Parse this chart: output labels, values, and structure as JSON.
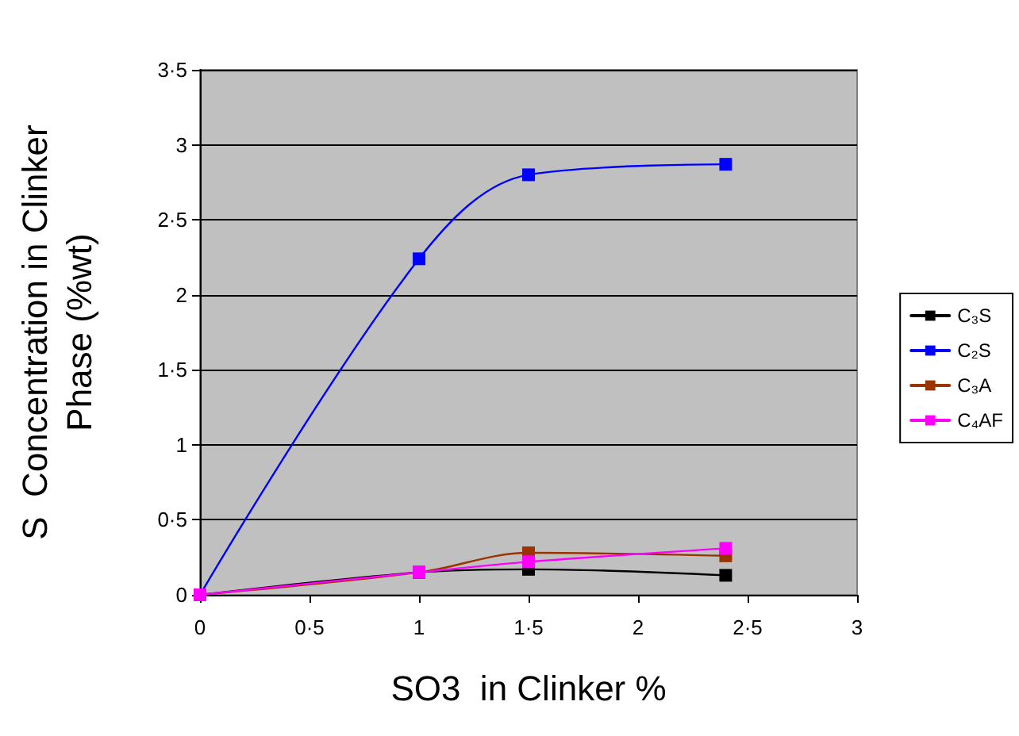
{
  "chart_data": {
    "type": "line",
    "xlabel": "SO3  in Clinker %",
    "ylabel": "S  Concentration in Clinker\nPhase (%wt)",
    "x": [
      0,
      1,
      1.5,
      2.4
    ],
    "series": [
      {
        "name": "C₃S",
        "color": "#000000",
        "values": [
          0,
          0.15,
          0.17,
          0.13
        ]
      },
      {
        "name": "C₂S",
        "color": "#0000ff",
        "values": [
          0,
          2.24,
          2.8,
          2.87
        ]
      },
      {
        "name": "C₃A",
        "color": "#993300",
        "values": [
          0,
          0.15,
          0.28,
          0.26
        ]
      },
      {
        "name": "C₄AF",
        "color": "#ff00ff",
        "values": [
          0,
          0.15,
          0.22,
          0.31
        ]
      }
    ],
    "xlim": [
      0,
      3
    ],
    "xticks": [
      0,
      {
        "value": 0.5,
        "label": "0·5"
      },
      1,
      {
        "value": 1.5,
        "label": "1·5"
      },
      2,
      {
        "value": 2.5,
        "label": "2·5"
      },
      3
    ],
    "ylim": [
      0,
      3.5
    ],
    "yticks": [
      0,
      {
        "value": 0.5,
        "label": "0·5"
      },
      1,
      {
        "value": 1.5,
        "label": "1·5"
      },
      2,
      {
        "value": 2.5,
        "label": "2·5"
      },
      3,
      {
        "value": 3.5,
        "label": "3·5"
      }
    ],
    "grid": "y",
    "legend": "right",
    "marker": "square",
    "line_style": "solid"
  }
}
